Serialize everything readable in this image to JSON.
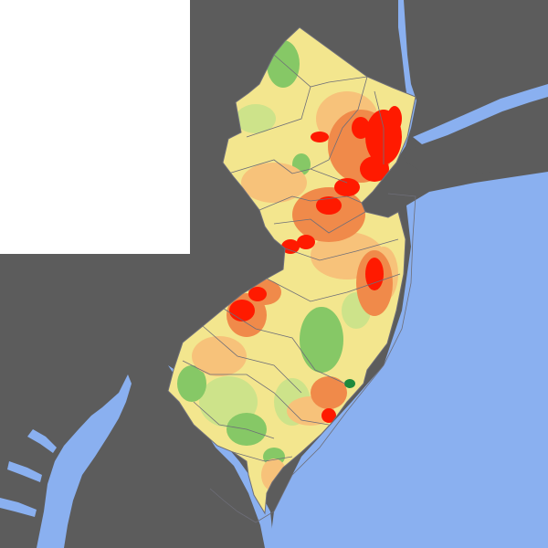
{
  "map": {
    "colors": {
      "land_outside": "#5c5c5c",
      "water": "#8ab0f0",
      "inset_blank": "#ffffff",
      "county_border": "#6e6e78",
      "density_low": "#86c866",
      "density_lowmid": "#cde38a",
      "density_mid": "#f3e68e",
      "density_midhigh": "#f7c27a",
      "density_high": "#f08a4a",
      "density_very_high": "#ff1a00",
      "wetland_green": "#1e8a3c"
    },
    "features": [
      "new-jersey-land",
      "county-boundaries",
      "hudson-river",
      "long-island",
      "delaware-bay",
      "chesapeake-bay",
      "atlantic-ocean",
      "pine-barrens-low-density",
      "northeast-urban-high-density"
    ]
  }
}
